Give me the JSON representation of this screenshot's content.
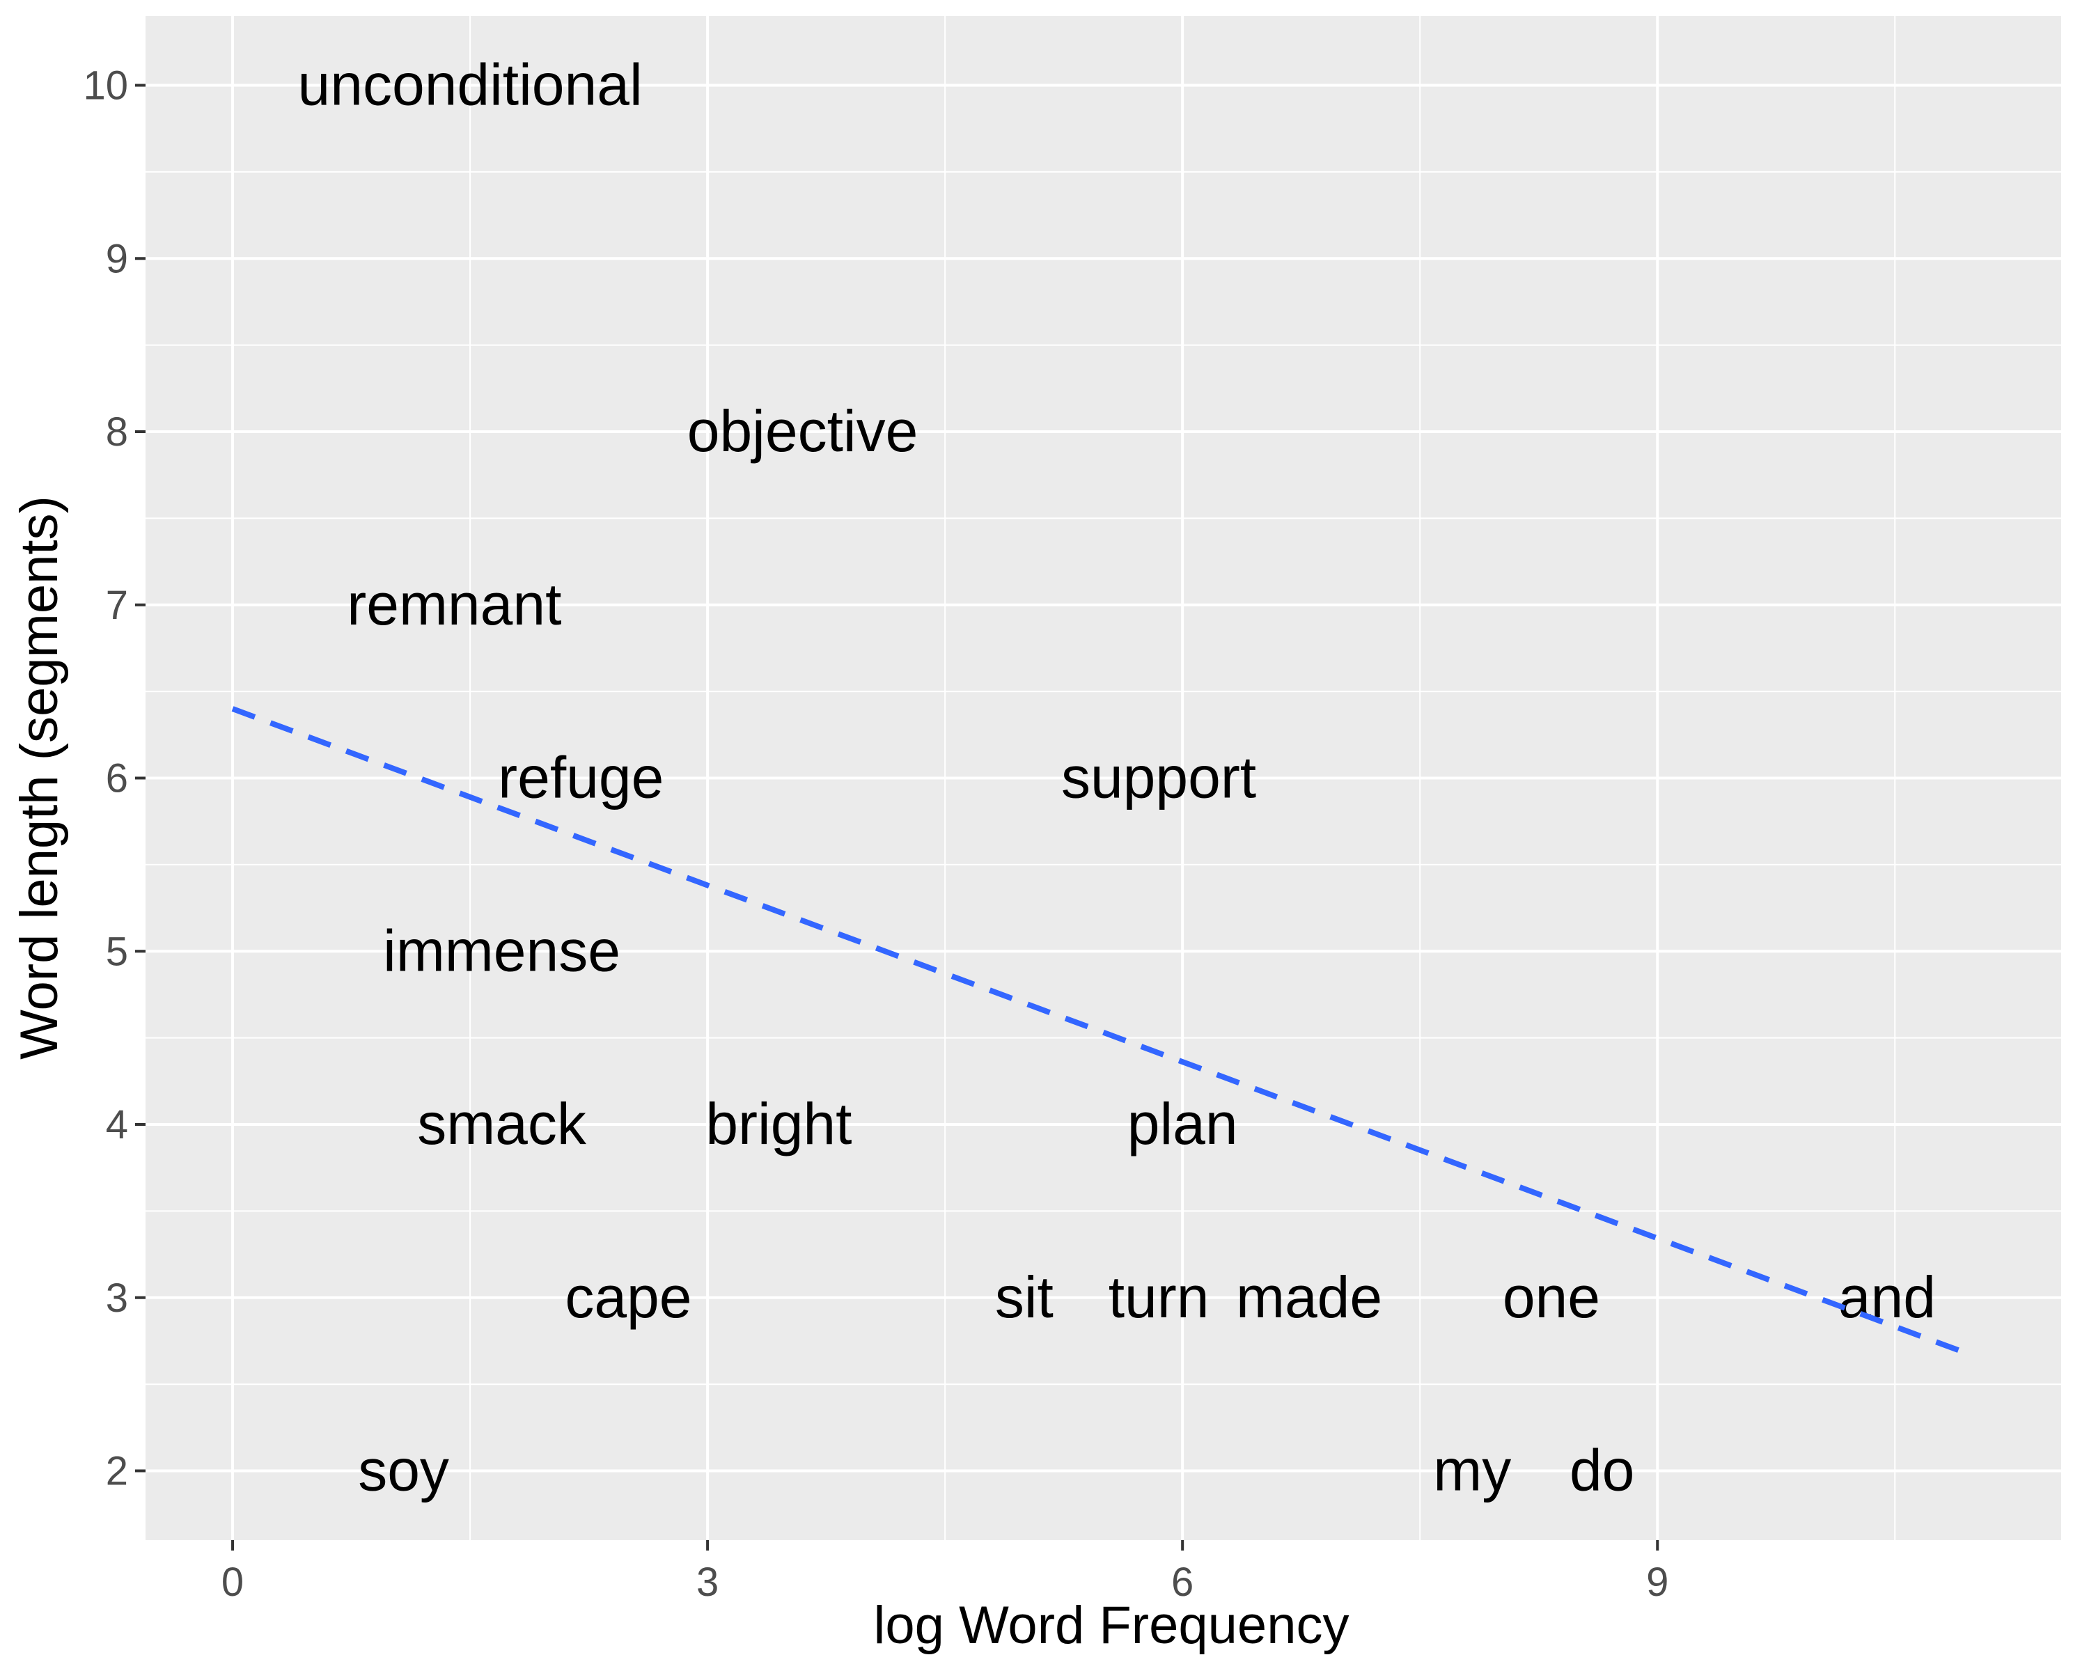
{
  "chart_data": {
    "type": "scatter",
    "xlabel": "log Word Frequency",
    "ylabel": "Word length (segments)",
    "xlim": [
      -0.55,
      11.55
    ],
    "ylim": [
      1.6,
      10.4
    ],
    "x_ticks": [
      0,
      3,
      6,
      9
    ],
    "y_ticks": [
      2,
      3,
      4,
      5,
      6,
      7,
      8,
      9,
      10
    ],
    "grid": true,
    "background_color": "#ebebeb",
    "grid_color": "#ffffff",
    "fit_line_color": "#3366ff",
    "points": [
      {
        "label": "unconditional",
        "x": 1.5,
        "y": 10
      },
      {
        "label": "objective",
        "x": 3.6,
        "y": 8
      },
      {
        "label": "remnant",
        "x": 1.4,
        "y": 7
      },
      {
        "label": "refuge",
        "x": 2.2,
        "y": 6
      },
      {
        "label": "support",
        "x": 5.85,
        "y": 6
      },
      {
        "label": "immense",
        "x": 1.7,
        "y": 5
      },
      {
        "label": "smack",
        "x": 1.7,
        "y": 4
      },
      {
        "label": "bright",
        "x": 3.45,
        "y": 4
      },
      {
        "label": "plan",
        "x": 6.0,
        "y": 4
      },
      {
        "label": "cape",
        "x": 2.5,
        "y": 3
      },
      {
        "label": "sit",
        "x": 5.0,
        "y": 3
      },
      {
        "label": "turn",
        "x": 5.85,
        "y": 3
      },
      {
        "label": "made",
        "x": 6.8,
        "y": 3
      },
      {
        "label": "one",
        "x": 8.33,
        "y": 3
      },
      {
        "label": "and",
        "x": 10.45,
        "y": 3
      },
      {
        "label": "soy",
        "x": 1.08,
        "y": 2
      },
      {
        "label": "my",
        "x": 7.83,
        "y": 2
      },
      {
        "label": "do",
        "x": 8.65,
        "y": 2
      }
    ],
    "trend_line": {
      "style": "dashed",
      "x": [
        0,
        10.95
      ],
      "y": [
        6.4,
        2.68
      ]
    }
  }
}
